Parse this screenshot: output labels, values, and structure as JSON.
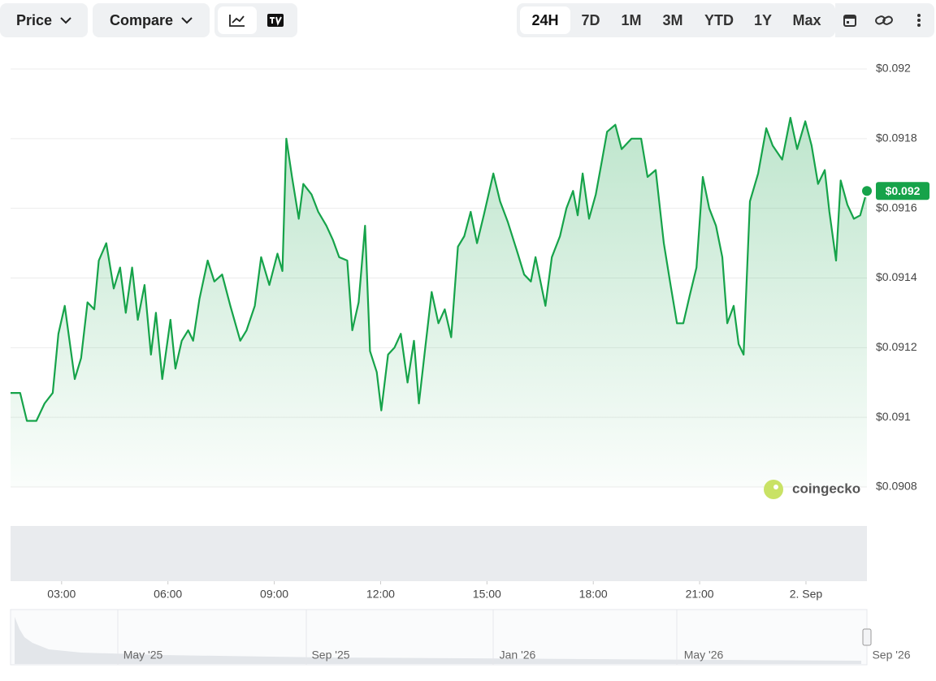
{
  "toolbar": {
    "price": "Price",
    "compare": "Compare",
    "ranges": [
      "24H",
      "7D",
      "1M",
      "3M",
      "YTD",
      "1Y",
      "Max"
    ]
  },
  "chart_data": {
    "type": "line",
    "color": "#16a34a",
    "grid": true,
    "x": [
      1.56,
      1.83,
      2.02,
      2.29,
      2.52,
      2.75,
      2.91,
      3.09,
      3.37,
      3.55,
      3.73,
      3.92,
      4.05,
      4.26,
      4.47,
      4.65,
      4.81,
      4.99,
      5.15,
      5.34,
      5.52,
      5.66,
      5.84,
      6.07,
      6.21,
      6.39,
      6.57,
      6.71,
      6.89,
      7.12,
      7.31,
      7.53,
      7.76,
      8.04,
      8.22,
      8.45,
      8.63,
      8.86,
      9.09,
      9.23,
      9.34,
      9.5,
      9.69,
      9.82,
      10.05,
      10.24,
      10.47,
      10.65,
      10.83,
      11.06,
      11.2,
      11.38,
      11.56,
      11.7,
      11.89,
      12.02,
      12.21,
      12.39,
      12.57,
      12.76,
      12.94,
      13.08,
      13.26,
      13.44,
      13.63,
      13.81,
      13.99,
      14.18,
      14.36,
      14.54,
      14.72,
      14.91,
      15.18,
      15.37,
      15.59,
      15.87,
      16.05,
      16.24,
      16.37,
      16.65,
      16.83,
      17.06,
      17.24,
      17.43,
      17.56,
      17.7,
      17.88,
      18.07,
      18.25,
      18.39,
      18.62,
      18.8,
      19.08,
      19.35,
      19.53,
      19.76,
      19.99,
      20.18,
      20.36,
      20.54,
      20.72,
      20.91,
      21.09,
      21.27,
      21.46,
      21.64,
      21.78,
      21.96,
      22.1,
      22.24,
      22.42,
      22.65,
      22.88,
      23.06,
      23.33,
      23.56,
      23.75,
      23.98,
      24.16,
      24.34,
      24.53,
      24.66,
      24.85,
      24.98,
      25.17,
      25.35,
      25.53,
      25.72
    ],
    "values": [
      0.09107,
      0.09107,
      0.09099,
      0.09099,
      0.09104,
      0.09107,
      0.09124,
      0.09132,
      0.09111,
      0.09117,
      0.09133,
      0.09131,
      0.09145,
      0.0915,
      0.09137,
      0.09143,
      0.0913,
      0.09143,
      0.09128,
      0.09138,
      0.09118,
      0.0913,
      0.09111,
      0.09128,
      0.09114,
      0.09122,
      0.09125,
      0.09122,
      0.09134,
      0.09145,
      0.09139,
      0.09141,
      0.09132,
      0.09122,
      0.09125,
      0.09132,
      0.09146,
      0.09138,
      0.09147,
      0.09142,
      0.0918,
      0.09169,
      0.09157,
      0.09167,
      0.09164,
      0.09159,
      0.09155,
      0.09151,
      0.09146,
      0.09145,
      0.09125,
      0.09133,
      0.09155,
      0.09119,
      0.09113,
      0.09102,
      0.09118,
      0.0912,
      0.09124,
      0.0911,
      0.09122,
      0.09104,
      0.0912,
      0.09136,
      0.09127,
      0.09131,
      0.09123,
      0.09149,
      0.09152,
      0.09159,
      0.0915,
      0.09158,
      0.0917,
      0.09162,
      0.09156,
      0.09147,
      0.09141,
      0.09139,
      0.09146,
      0.09132,
      0.09146,
      0.09152,
      0.0916,
      0.09165,
      0.09158,
      0.0917,
      0.09157,
      0.09164,
      0.09174,
      0.09182,
      0.09184,
      0.09177,
      0.0918,
      0.0918,
      0.09169,
      0.09171,
      0.0915,
      0.09138,
      0.09127,
      0.09127,
      0.09135,
      0.09143,
      0.09169,
      0.0916,
      0.09155,
      0.09146,
      0.09127,
      0.09132,
      0.09121,
      0.09118,
      0.09162,
      0.0917,
      0.09183,
      0.09178,
      0.09174,
      0.09186,
      0.09177,
      0.09185,
      0.09178,
      0.09167,
      0.09171,
      0.09159,
      0.09145,
      0.09168,
      0.09161,
      0.09157,
      0.09158,
      0.09165
    ],
    "xlim": [
      1.56,
      25.72
    ],
    "ylim": [
      0.0908,
      0.092
    ],
    "xticks": [
      {
        "value": 3,
        "label": "03:00"
      },
      {
        "value": 6,
        "label": "06:00"
      },
      {
        "value": 9,
        "label": "09:00"
      },
      {
        "value": 12,
        "label": "12:00"
      },
      {
        "value": 15,
        "label": "15:00"
      },
      {
        "value": 18,
        "label": "18:00"
      },
      {
        "value": 21,
        "label": "21:00"
      },
      {
        "value": 24,
        "label": "2. Sep"
      }
    ],
    "yticks": [
      {
        "value": 0.0908,
        "label": "$0.0908"
      },
      {
        "value": 0.091,
        "label": "$0.091"
      },
      {
        "value": 0.0912,
        "label": "$0.0912"
      },
      {
        "value": 0.0914,
        "label": "$0.0914"
      },
      {
        "value": 0.0916,
        "label": "$0.0916"
      },
      {
        "value": 0.0918,
        "label": "$0.0918"
      },
      {
        "value": 0.092,
        "label": "$0.092"
      }
    ],
    "last_value_label": "$0.092",
    "watermark": "coingecko"
  },
  "navigator": {
    "labels": [
      "May '25",
      "Sep '25",
      "Jan '26",
      "May '26",
      "Sep '26"
    ]
  }
}
